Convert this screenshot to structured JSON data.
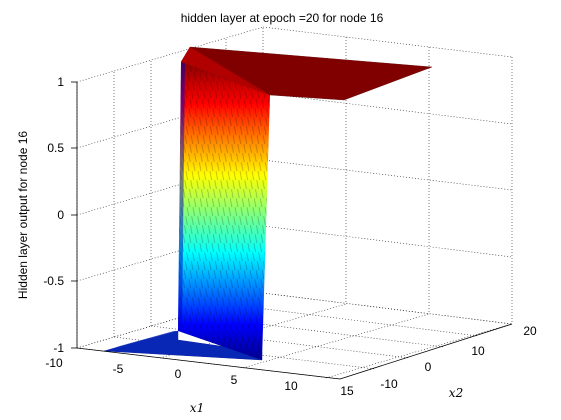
{
  "chart_data": {
    "type": "surface",
    "title": "hidden layer at epoch =20 for node 16",
    "xlabel": "x1",
    "ylabel": "x2",
    "zlabel": "Hidden layer output for node 16",
    "x_ticks": [
      -10,
      -5,
      0,
      5,
      10,
      15
    ],
    "y_ticks": [
      -10,
      0,
      10,
      20
    ],
    "z_ticks": [
      -1,
      -0.5,
      0,
      0.5,
      1
    ],
    "xlim": [
      -10,
      15
    ],
    "ylim": [
      -10,
      20
    ],
    "zlim": [
      -1,
      1.1
    ],
    "grid": true,
    "colormap": "jet",
    "surface": {
      "description": "step function along x1",
      "x1_step": 0,
      "low_value": -1,
      "high_value": 1,
      "x1_range": [
        -7,
        16
      ],
      "x2_range": [
        -10,
        20
      ]
    }
  }
}
